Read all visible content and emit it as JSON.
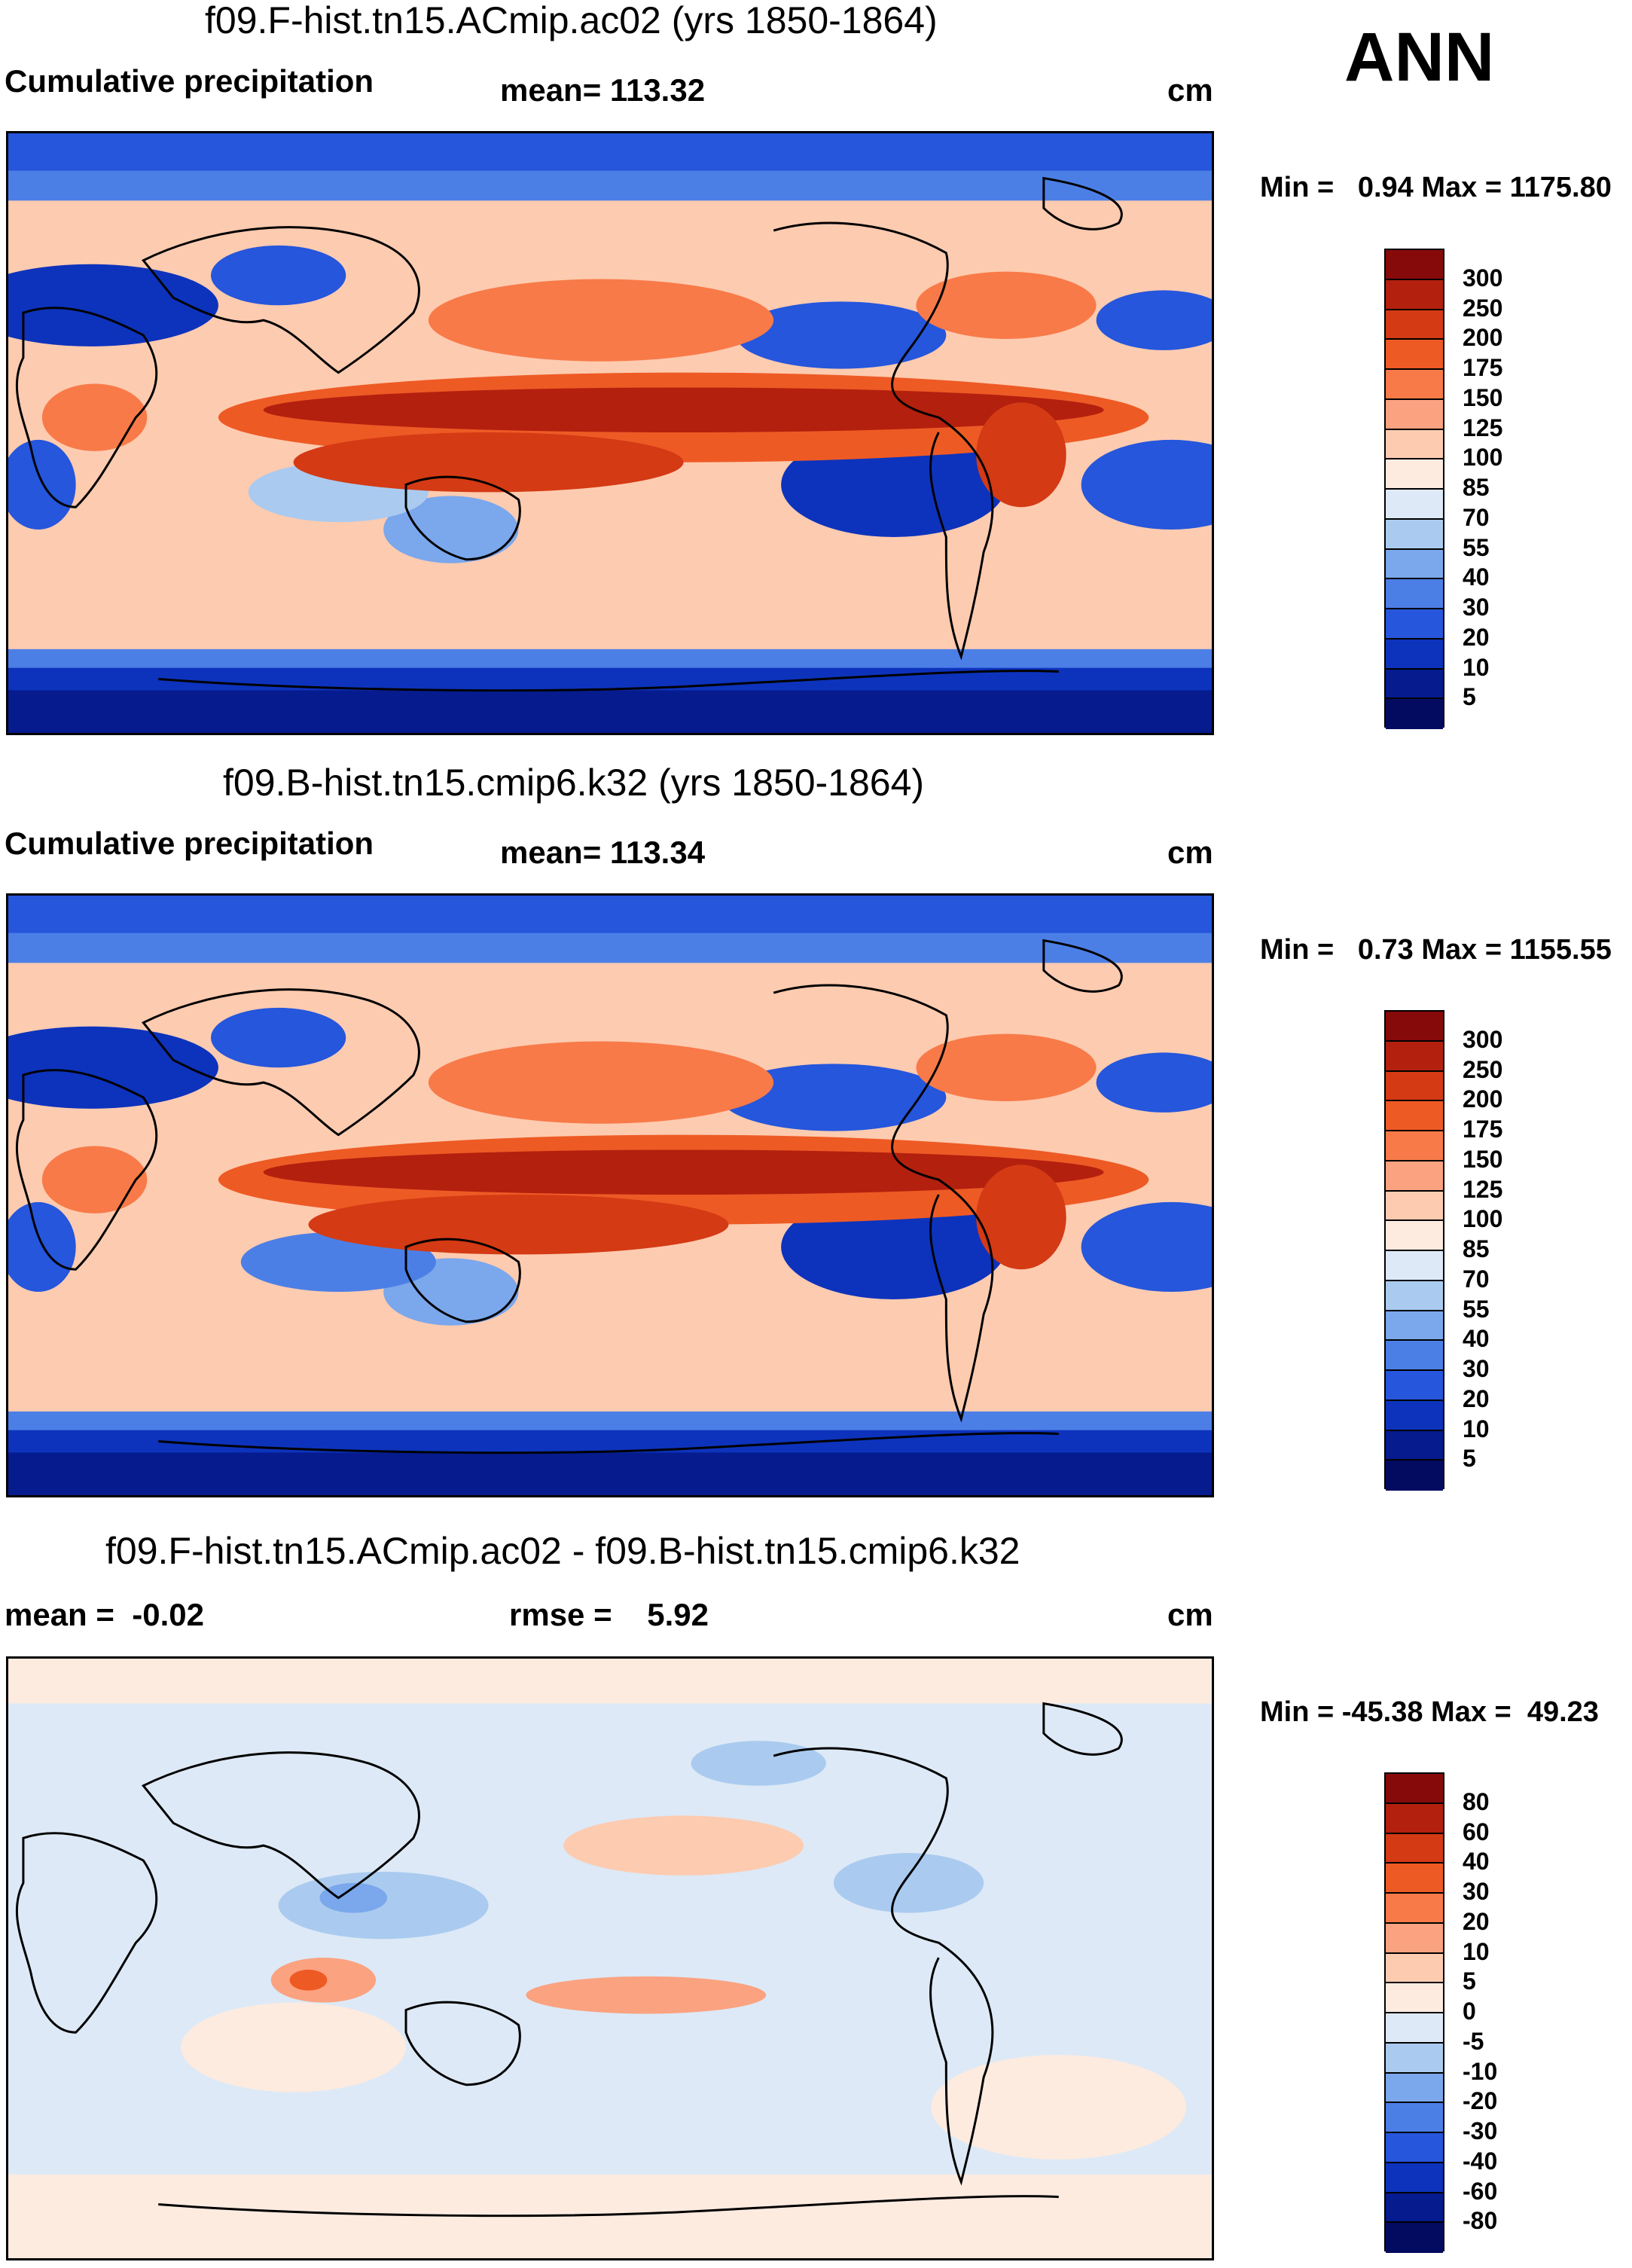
{
  "season": "ANN",
  "panels": [
    {
      "title": "f09.F-hist.tn15.ACmip.ac02 (yrs 1850-1864)",
      "left_label": "Cumulative precipitation",
      "center_label": "mean= 113.32",
      "units": "cm",
      "minmax": "Min =   0.94 Max = 1175.80",
      "colorbar_labels": [
        "300",
        "250",
        "200",
        "175",
        "150",
        "125",
        "100",
        "85",
        "70",
        "55",
        "40",
        "30",
        "20",
        "10",
        "5"
      ],
      "colorbar_colors": [
        "#870a0a",
        "#b3200e",
        "#d43a14",
        "#ee5a24",
        "#f87a48",
        "#fba280",
        "#fdcbb0",
        "#fdebe0",
        "#dde9f6",
        "#aacbef",
        "#7ba7ec",
        "#4c7fe6",
        "#2556dc",
        "#0d33bc",
        "#061b8e",
        "#030b60"
      ]
    },
    {
      "title": "f09.B-hist.tn15.cmip6.k32 (yrs 1850-1864)",
      "left_label": "Cumulative precipitation",
      "center_label": "mean= 113.34",
      "units": "cm",
      "minmax": "Min =   0.73 Max = 1155.55",
      "colorbar_labels": [
        "300",
        "250",
        "200",
        "175",
        "150",
        "125",
        "100",
        "85",
        "70",
        "55",
        "40",
        "30",
        "20",
        "10",
        "5"
      ],
      "colorbar_colors": [
        "#870a0a",
        "#b3200e",
        "#d43a14",
        "#ee5a24",
        "#f87a48",
        "#fba280",
        "#fdcbb0",
        "#fdebe0",
        "#dde9f6",
        "#aacbef",
        "#7ba7ec",
        "#4c7fe6",
        "#2556dc",
        "#0d33bc",
        "#061b8e",
        "#030b60"
      ]
    },
    {
      "title": "f09.F-hist.tn15.ACmip.ac02 - f09.B-hist.tn15.cmip6.k32",
      "left_label": "mean =  -0.02",
      "center_label": "rmse =    5.92",
      "units": "cm",
      "minmax": "Min = -45.38 Max =  49.23",
      "colorbar_labels": [
        "80",
        "60",
        "40",
        "30",
        "20",
        "10",
        "5",
        "0",
        "-5",
        "-10",
        "-20",
        "-30",
        "-40",
        "-60",
        "-80"
      ],
      "colorbar_colors": [
        "#870a0a",
        "#b3200e",
        "#d43a14",
        "#ee5a24",
        "#f87a48",
        "#fba280",
        "#fdcbb0",
        "#fdebe0",
        "#dde9f6",
        "#aacbef",
        "#7ba7ec",
        "#4c7fe6",
        "#2556dc",
        "#0d33bc",
        "#061b8e",
        "#030b60"
      ]
    }
  ]
}
